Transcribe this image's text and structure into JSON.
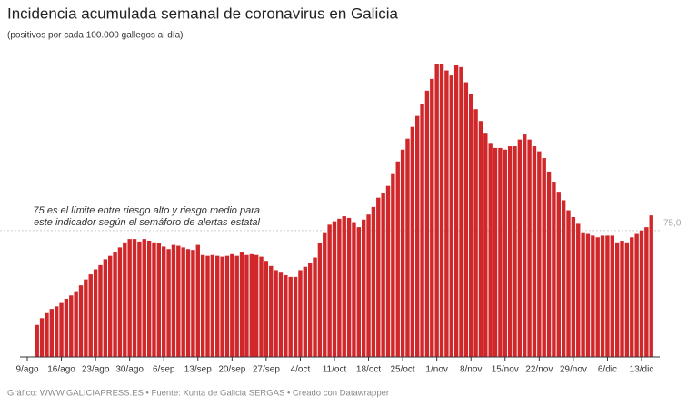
{
  "chart_data": {
    "type": "bar",
    "title": "Incidencia acumulada semanal de coronavirus en Galicia",
    "subtitle": "(positivos por cada 100.000 gallegos al día)",
    "annotation": [
      "75 es el límite entre riesgo alto y riesgo medio para",
      "este indicador según el semáforo de alertas estatal"
    ],
    "footer": "Gráfico: WWW.GALICIAPRESS.ES • Fuente: Xunta de Galicia SERGAS • Creado con Datawrapper",
    "reference_line": {
      "value": 75,
      "label": "75,0"
    },
    "color": "#d0272b",
    "ylim": [
      0,
      180
    ],
    "categories": [
      "9/ago",
      null,
      null,
      null,
      null,
      null,
      null,
      "16/ago",
      null,
      null,
      null,
      null,
      null,
      null,
      "23/ago",
      null,
      null,
      null,
      null,
      null,
      null,
      "30/ago",
      null,
      null,
      null,
      null,
      null,
      null,
      "6/sep",
      null,
      null,
      null,
      null,
      null,
      null,
      "13/sep",
      null,
      null,
      null,
      null,
      null,
      null,
      "20/sep",
      null,
      null,
      null,
      null,
      null,
      null,
      "27/sep",
      null,
      null,
      null,
      null,
      null,
      null,
      "4/oct",
      null,
      null,
      null,
      null,
      null,
      null,
      "11/oct",
      null,
      null,
      null,
      null,
      null,
      null,
      "18/oct",
      null,
      null,
      null,
      null,
      null,
      null,
      "25/oct",
      null,
      null,
      null,
      null,
      null,
      null,
      "1/nov",
      null,
      null,
      null,
      null,
      null,
      null,
      "8/nov",
      null,
      null,
      null,
      null,
      null,
      null,
      "15/nov",
      null,
      null,
      null,
      null,
      null,
      null,
      "22/nov",
      null,
      null,
      null,
      null,
      null,
      null,
      "29/nov",
      null,
      null,
      null,
      null,
      null,
      null,
      "6/dic",
      null,
      null,
      null,
      null,
      null,
      null,
      "13/dic",
      null,
      null
    ],
    "values": [
      null,
      null,
      19,
      23,
      26,
      28.5,
      30,
      32,
      34.5,
      36.5,
      39,
      42.5,
      46,
      49,
      52,
      54.5,
      58,
      60,
      62.5,
      65,
      68,
      70,
      70,
      68.5,
      70,
      69,
      68,
      67.5,
      65.5,
      64,
      66.5,
      66,
      65,
      64,
      63.5,
      66.5,
      60.5,
      60,
      60.5,
      60,
      59.5,
      60,
      61,
      60,
      62.5,
      60.5,
      61,
      60.5,
      59.5,
      57,
      54,
      51.5,
      50,
      48.5,
      47.5,
      47.5,
      51.5,
      53.5,
      55.5,
      59,
      67.5,
      74,
      78.5,
      80.5,
      82,
      83.5,
      82.5,
      80,
      77,
      81.5,
      84.5,
      89,
      94.5,
      97.5,
      101.5,
      108.5,
      116,
      123,
      129.5,
      136.5,
      143,
      150,
      158,
      165,
      174,
      174,
      170,
      167,
      173,
      172,
      163,
      156,
      147,
      140,
      133,
      127,
      124,
      124,
      123,
      125,
      125,
      129,
      132,
      129,
      125,
      122,
      118,
      110,
      104,
      98,
      93,
      87,
      83,
      79,
      74,
      73,
      72,
      71,
      72,
      72,
      72,
      68,
      69,
      68,
      71,
      73,
      75,
      77,
      84
    ]
  }
}
